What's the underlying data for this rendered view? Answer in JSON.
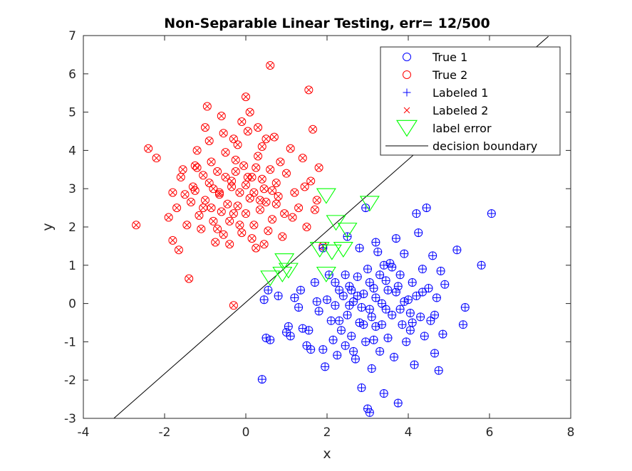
{
  "chart_data": {
    "type": "scatter",
    "title": "Non-Separable Linear Testing, err= 12/500",
    "xlabel": "x",
    "ylabel": "y",
    "xlim": [
      -4,
      8
    ],
    "ylim": [
      -3,
      7
    ],
    "xticks": [
      "-4",
      "-2",
      "0",
      "2",
      "4",
      "6",
      "8"
    ],
    "yticks": [
      "-3",
      "-2",
      "-1",
      "0",
      "1",
      "2",
      "3",
      "4",
      "5",
      "6",
      "7"
    ],
    "legend_location": "top-right",
    "grid": false,
    "colors": {
      "true1": "#0000ff",
      "true2": "#ff0000",
      "error": "#00ff00",
      "boundary": "#000000"
    },
    "legend": [
      {
        "label": "True 1",
        "marker": "circle",
        "color": "#0000ff"
      },
      {
        "label": "True 2",
        "marker": "circle",
        "color": "#ff0000"
      },
      {
        "label": "Labeled 1",
        "marker": "plus",
        "color": "#0000ff"
      },
      {
        "label": "Labeled 2",
        "marker": "x",
        "color": "#ff0000"
      },
      {
        "label": "label error",
        "marker": "triangle-down",
        "color": "#00ff00"
      },
      {
        "label": "decision boundary",
        "marker": "line",
        "color": "#000000"
      }
    ],
    "decision_boundary": {
      "x": [
        -3.25,
        7.45
      ],
      "y": [
        -3.0,
        6.98
      ]
    },
    "series": [
      {
        "name": "True 2 / Labeled 2",
        "points": [
          [
            -2.7,
            2.05
          ],
          [
            -2.4,
            4.05
          ],
          [
            -2.2,
            3.8
          ],
          [
            -1.9,
            2.25
          ],
          [
            -1.8,
            1.65
          ],
          [
            -1.7,
            2.5
          ],
          [
            -1.65,
            1.4
          ],
          [
            -1.6,
            3.3
          ],
          [
            -1.55,
            3.5
          ],
          [
            -1.5,
            2.85
          ],
          [
            -1.45,
            2.05
          ],
          [
            -1.4,
            0.65
          ],
          [
            -1.35,
            2.65
          ],
          [
            -1.3,
            3.05
          ],
          [
            -1.25,
            3.6
          ],
          [
            -1.2,
            4.0
          ],
          [
            -1.15,
            2.3
          ],
          [
            -1.1,
            1.95
          ],
          [
            -1.05,
            3.35
          ],
          [
            -1.0,
            4.6
          ],
          [
            -0.95,
            5.15
          ],
          [
            -0.9,
            4.25
          ],
          [
            -0.85,
            3.7
          ],
          [
            -0.8,
            2.15
          ],
          [
            -0.75,
            1.6
          ],
          [
            -0.7,
            3.45
          ],
          [
            -0.65,
            2.85
          ],
          [
            -0.6,
            4.9
          ],
          [
            -0.55,
            4.45
          ],
          [
            -0.5,
            3.95
          ],
          [
            -0.45,
            2.6
          ],
          [
            -0.4,
            1.55
          ],
          [
            -0.35,
            3.2
          ],
          [
            -0.3,
            2.35
          ],
          [
            -0.25,
            3.75
          ],
          [
            -0.2,
            4.15
          ],
          [
            -0.15,
            2.9
          ],
          [
            -0.1,
            1.85
          ],
          [
            -0.05,
            3.6
          ],
          [
            0.0,
            3.1
          ],
          [
            0.05,
            4.5
          ],
          [
            0.1,
            2.75
          ],
          [
            0.15,
            3.3
          ],
          [
            0.2,
            2.05
          ],
          [
            0.25,
            1.45
          ],
          [
            0.3,
            3.85
          ],
          [
            0.35,
            2.45
          ],
          [
            0.4,
            4.1
          ],
          [
            0.45,
            3.0
          ],
          [
            0.5,
            2.65
          ],
          [
            0.55,
            1.9
          ],
          [
            0.6,
            3.5
          ],
          [
            0.65,
            2.2
          ],
          [
            0.7,
            4.35
          ],
          [
            0.75,
            3.15
          ],
          [
            0.8,
            2.8
          ],
          [
            0.85,
            3.7
          ],
          [
            0.9,
            1.75
          ],
          [
            0.95,
            2.35
          ],
          [
            1.0,
            3.4
          ],
          [
            1.1,
            4.05
          ],
          [
            1.2,
            2.9
          ],
          [
            1.3,
            2.5
          ],
          [
            1.4,
            3.8
          ],
          [
            1.5,
            2.0
          ],
          [
            1.6,
            3.2
          ],
          [
            1.7,
            2.45
          ],
          [
            1.8,
            3.55
          ],
          [
            1.9,
            1.5
          ],
          [
            -0.3,
            -0.05
          ],
          [
            0.0,
            5.4
          ],
          [
            0.6,
            6.22
          ],
          [
            1.55,
            5.58
          ],
          [
            -1.25,
            2.95
          ],
          [
            -1.0,
            2.7
          ],
          [
            -0.8,
            3.0
          ],
          [
            -0.6,
            2.4
          ],
          [
            -0.4,
            2.15
          ],
          [
            -0.2,
            2.55
          ],
          [
            0.0,
            2.35
          ],
          [
            0.2,
            2.9
          ],
          [
            0.4,
            3.25
          ],
          [
            -0.9,
            3.15
          ],
          [
            -0.7,
            1.95
          ],
          [
            -0.5,
            3.3
          ],
          [
            -0.3,
            4.3
          ],
          [
            -0.1,
            4.75
          ],
          [
            0.1,
            5.0
          ],
          [
            0.3,
            4.6
          ],
          [
            0.5,
            4.3
          ],
          [
            -1.8,
            2.9
          ],
          [
            -1.2,
            3.55
          ],
          [
            -0.85,
            2.5
          ],
          [
            -0.15,
            2.05
          ],
          [
            0.25,
            3.55
          ],
          [
            0.75,
            2.6
          ],
          [
            1.15,
            2.25
          ],
          [
            1.45,
            3.05
          ],
          [
            1.65,
            4.55
          ],
          [
            1.75,
            2.7
          ],
          [
            -0.65,
            2.9
          ],
          [
            -0.35,
            3.05
          ],
          [
            0.05,
            3.3
          ],
          [
            0.35,
            2.7
          ],
          [
            0.65,
            2.95
          ],
          [
            -1.05,
            2.5
          ],
          [
            -0.55,
            1.8
          ],
          [
            0.15,
            1.7
          ],
          [
            -0.25,
            3.45
          ],
          [
            0.45,
            1.55
          ]
        ]
      },
      {
        "name": "True 1 / Labeled 1",
        "points": [
          [
            0.4,
            -1.98
          ],
          [
            0.5,
            -0.9
          ],
          [
            0.6,
            -0.95
          ],
          [
            0.45,
            0.1
          ],
          [
            0.55,
            0.35
          ],
          [
            0.8,
            0.2
          ],
          [
            1.0,
            -0.75
          ],
          [
            1.05,
            -0.6
          ],
          [
            1.1,
            -0.85
          ],
          [
            1.2,
            0.15
          ],
          [
            1.3,
            -0.1
          ],
          [
            1.4,
            -0.65
          ],
          [
            1.5,
            -1.1
          ],
          [
            1.55,
            -0.7
          ],
          [
            1.6,
            -1.2
          ],
          [
            1.7,
            0.55
          ],
          [
            1.8,
            -0.2
          ],
          [
            1.9,
            -1.2
          ],
          [
            1.95,
            -1.65
          ],
          [
            2.0,
            0.1
          ],
          [
            2.1,
            -0.45
          ],
          [
            2.2,
            -0.05
          ],
          [
            2.25,
            -1.35
          ],
          [
            2.3,
            0.35
          ],
          [
            2.35,
            -0.7
          ],
          [
            2.4,
            0.2
          ],
          [
            2.45,
            -1.1
          ],
          [
            2.5,
            -0.3
          ],
          [
            2.55,
            0.45
          ],
          [
            2.6,
            -0.85
          ],
          [
            2.65,
            0.05
          ],
          [
            2.7,
            -1.45
          ],
          [
            2.75,
            0.7
          ],
          [
            2.8,
            -0.5
          ],
          [
            2.85,
            -2.2
          ],
          [
            2.9,
            0.25
          ],
          [
            2.95,
            -1.0
          ],
          [
            3.0,
            0.9
          ],
          [
            3.05,
            -0.15
          ],
          [
            3.1,
            -1.7
          ],
          [
            3.15,
            0.4
          ],
          [
            3.2,
            -0.6
          ],
          [
            3.25,
            1.35
          ],
          [
            3.3,
            -1.25
          ],
          [
            3.35,
            0.0
          ],
          [
            3.4,
            -2.35
          ],
          [
            3.45,
            0.6
          ],
          [
            3.5,
            -0.9
          ],
          [
            3.55,
            1.05
          ],
          [
            3.6,
            -0.3
          ],
          [
            3.65,
            -1.4
          ],
          [
            3.7,
            0.3
          ],
          [
            3.75,
            -2.6
          ],
          [
            3.8,
            0.75
          ],
          [
            3.85,
            -0.55
          ],
          [
            3.9,
            1.3
          ],
          [
            3.95,
            -1.0
          ],
          [
            4.0,
            0.1
          ],
          [
            4.05,
            -0.7
          ],
          [
            4.1,
            0.55
          ],
          [
            4.15,
            -1.6
          ],
          [
            4.2,
            0.2
          ],
          [
            4.25,
            1.85
          ],
          [
            4.3,
            -0.35
          ],
          [
            4.35,
            0.9
          ],
          [
            4.4,
            -0.85
          ],
          [
            4.45,
            2.5
          ],
          [
            4.5,
            0.4
          ],
          [
            4.55,
            -0.45
          ],
          [
            4.6,
            1.25
          ],
          [
            4.65,
            -1.3
          ],
          [
            4.7,
            0.15
          ],
          [
            4.75,
            -1.75
          ],
          [
            4.8,
            0.85
          ],
          [
            4.85,
            -0.8
          ],
          [
            4.9,
            0.5
          ],
          [
            5.2,
            1.4
          ],
          [
            5.35,
            -0.55
          ],
          [
            5.4,
            -0.1
          ],
          [
            5.8,
            1.0
          ],
          [
            6.05,
            2.35
          ],
          [
            3.0,
            -2.75
          ],
          [
            3.05,
            -2.85
          ],
          [
            2.95,
            2.5
          ],
          [
            3.2,
            1.6
          ],
          [
            3.4,
            1.0
          ],
          [
            3.7,
            1.7
          ],
          [
            4.2,
            2.35
          ],
          [
            2.5,
            1.75
          ],
          [
            2.8,
            1.45
          ],
          [
            1.9,
            1.45
          ],
          [
            2.05,
            0.75
          ],
          [
            1.35,
            0.35
          ],
          [
            1.75,
            0.05
          ],
          [
            2.15,
            -0.95
          ],
          [
            2.65,
            -1.25
          ],
          [
            3.05,
            0.55
          ],
          [
            3.35,
            -0.55
          ],
          [
            3.6,
            0.95
          ],
          [
            3.9,
            0.05
          ],
          [
            2.45,
            0.75
          ],
          [
            2.85,
            -0.1
          ],
          [
            3.15,
            -0.95
          ],
          [
            3.45,
            -0.15
          ],
          [
            3.75,
            0.45
          ],
          [
            4.05,
            -0.25
          ],
          [
            4.35,
            0.3
          ],
          [
            4.65,
            -0.3
          ],
          [
            2.3,
            -0.45
          ],
          [
            2.6,
            0.35
          ],
          [
            2.9,
            -0.55
          ],
          [
            3.2,
            0.15
          ],
          [
            3.5,
            0.35
          ],
          [
            3.8,
            -0.15
          ],
          [
            4.1,
            -0.5
          ],
          [
            2.2,
            0.55
          ],
          [
            2.55,
            -0.05
          ],
          [
            2.75,
            0.2
          ],
          [
            3.1,
            -0.35
          ],
          [
            3.3,
            0.75
          ]
        ]
      },
      {
        "name": "label error",
        "points": [
          [
            1.98,
            2.85
          ],
          [
            3.05,
            2.65
          ],
          [
            2.22,
            2.15
          ],
          [
            2.5,
            1.95
          ],
          [
            0.95,
            1.15
          ],
          [
            1.05,
            0.9
          ],
          [
            0.9,
            0.8
          ],
          [
            0.6,
            0.7
          ],
          [
            1.82,
            1.45
          ],
          [
            2.12,
            1.38
          ],
          [
            2.4,
            1.45
          ],
          [
            1.98,
            0.8
          ]
        ]
      }
    ]
  }
}
